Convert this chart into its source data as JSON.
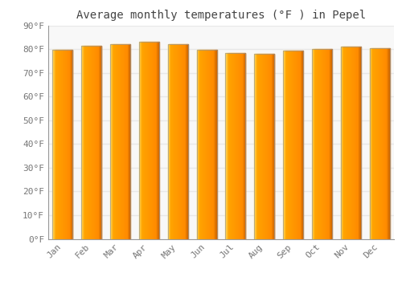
{
  "title": "Average monthly temperatures (°F ) in Pepel",
  "months": [
    "Jan",
    "Feb",
    "Mar",
    "Apr",
    "May",
    "Jun",
    "Jul",
    "Aug",
    "Sep",
    "Oct",
    "Nov",
    "Dec"
  ],
  "values": [
    79.7,
    81.3,
    82.0,
    83.0,
    82.0,
    79.7,
    78.4,
    78.1,
    79.3,
    80.1,
    81.0,
    80.4
  ],
  "bar_color_left": "#FFB300",
  "bar_color_center": "#FFCC44",
  "bar_color_right": "#FF8C00",
  "bar_edge_color": "#888888",
  "ylim": [
    0,
    90
  ],
  "yticks": [
    0,
    10,
    20,
    30,
    40,
    50,
    60,
    70,
    80,
    90
  ],
  "ytick_labels": [
    "0°F",
    "10°F",
    "20°F",
    "30°F",
    "40°F",
    "50°F",
    "60°F",
    "70°F",
    "80°F",
    "90°F"
  ],
  "background_color": "#ffffff",
  "plot_bg_color": "#f8f8f8",
  "grid_color": "#e8e8e8",
  "title_fontsize": 10,
  "tick_fontsize": 8,
  "font_family": "monospace"
}
